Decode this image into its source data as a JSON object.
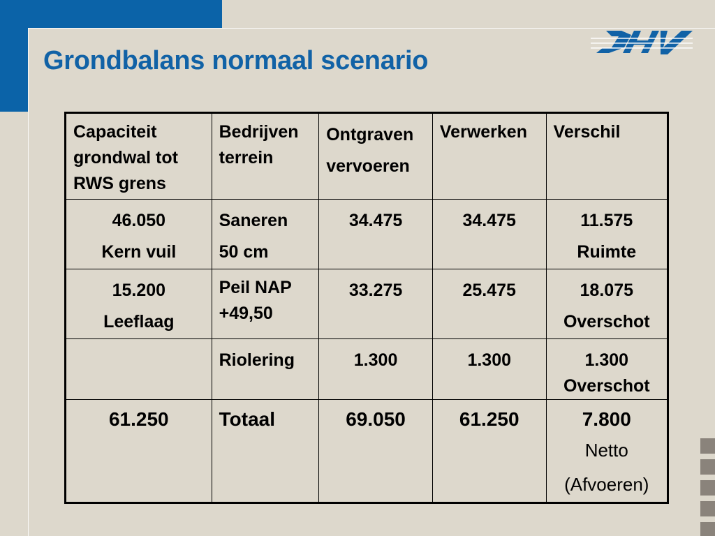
{
  "title": "Grondbalans normaal scenario",
  "logo": {
    "text": "DHV"
  },
  "colors": {
    "brand_blue": "#0b63a8",
    "background": "#ddd8cc",
    "deco_gray": "#8a837b"
  },
  "table": {
    "headers": [
      [
        "Capaciteit",
        "grondwal tot",
        "RWS grens"
      ],
      [
        "Bedrijven",
        "terrein"
      ],
      [
        "Ontgraven",
        "vervoeren"
      ],
      [
        "Verwerken"
      ],
      [
        "Verschil"
      ]
    ],
    "rows": [
      {
        "capaciteit": [
          "46.050",
          "Kern vuil"
        ],
        "terrein": [
          "Saneren",
          "50 cm"
        ],
        "ontgraven": "34.475",
        "verwerken": "34.475",
        "verschil": [
          "11.575",
          "Ruimte"
        ]
      },
      {
        "capaciteit": [
          "15.200",
          "Leeflaag"
        ],
        "terrein": [
          "Peil NAP",
          "+49,50"
        ],
        "ontgraven": "33.275",
        "verwerken": "25.475",
        "verschil": [
          "18.075",
          "Overschot"
        ]
      },
      {
        "capaciteit": [],
        "terrein": [
          "Riolering"
        ],
        "ontgraven": "1.300",
        "verwerken": "1.300",
        "verschil": [
          "1.300",
          "Overschot"
        ]
      }
    ],
    "total": {
      "capaciteit": "61.250",
      "terrein": "Totaal",
      "ontgraven": "69.050",
      "verwerken": "61.250",
      "verschil": [
        "7.800",
        "Netto",
        "(Afvoeren)"
      ]
    }
  }
}
